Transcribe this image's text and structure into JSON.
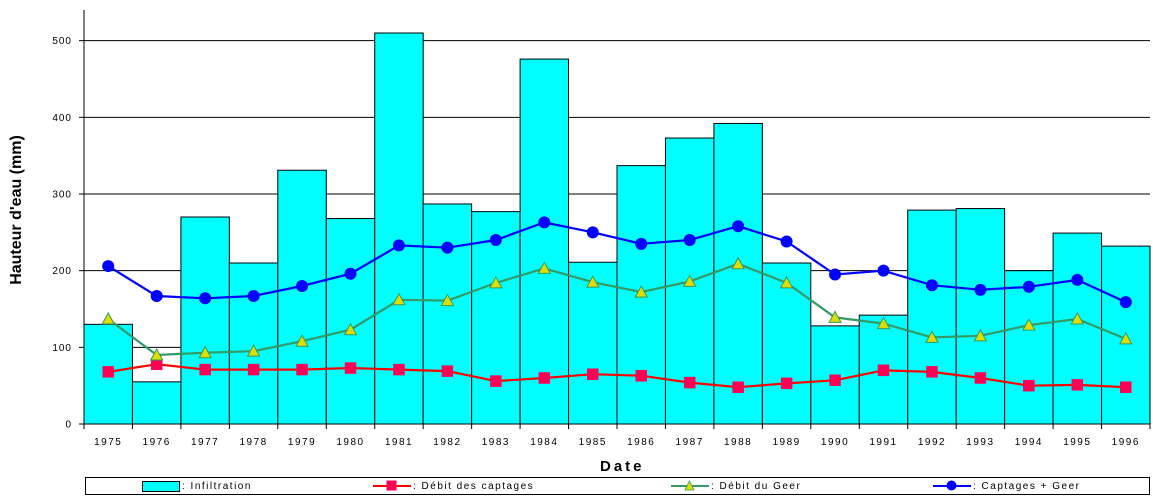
{
  "chart_data": {
    "type": "bar+line",
    "xlabel": "Date",
    "ylabel": "Hauteur d'eau (mm)",
    "ylim": [
      0,
      540
    ],
    "yticks": [
      0,
      100,
      200,
      300,
      400,
      500
    ],
    "grid": true,
    "legend_position": "bottom",
    "categories": [
      "1975",
      "1976",
      "1977",
      "1978",
      "1979",
      "1980",
      "1981",
      "1982",
      "1983",
      "1984",
      "1985",
      "1986",
      "1987",
      "1988",
      "1989",
      "1990",
      "1991",
      "1992",
      "1993",
      "1994",
      "1995",
      "1996"
    ],
    "series": [
      {
        "name": ": Infiltration",
        "type": "bar",
        "color": "#00ffff",
        "values": [
          130,
          55,
          270,
          210,
          331,
          268,
          510,
          287,
          277,
          476,
          211,
          337,
          373,
          392,
          210,
          128,
          142,
          279,
          281,
          200,
          249,
          232
        ]
      },
      {
        "name": ": Débit des captages",
        "type": "line",
        "color": "#ff0000",
        "marker": "square",
        "marker_color": "#ff0055",
        "values": [
          68,
          78,
          71,
          71,
          71,
          73,
          71,
          69,
          56,
          60,
          65,
          63,
          54,
          48,
          53,
          57,
          70,
          68,
          60,
          50,
          51,
          48
        ]
      },
      {
        "name": ": Débit du Geer",
        "type": "line",
        "color": "#339966",
        "marker": "triangle",
        "marker_color": "#dddd00",
        "values": [
          137,
          90,
          93,
          95,
          108,
          123,
          162,
          161,
          184,
          203,
          185,
          172,
          186,
          209,
          184,
          139,
          131,
          113,
          115,
          129,
          137,
          111
        ]
      },
      {
        "name": ": Captages + Geer",
        "type": "line",
        "color": "#0000ff",
        "marker": "circle",
        "marker_color": "#0000ff",
        "values": [
          206,
          167,
          164,
          167,
          180,
          196,
          233,
          230,
          240,
          263,
          250,
          235,
          240,
          258,
          238,
          195,
          200,
          181,
          175,
          179,
          188,
          159
        ]
      }
    ]
  }
}
